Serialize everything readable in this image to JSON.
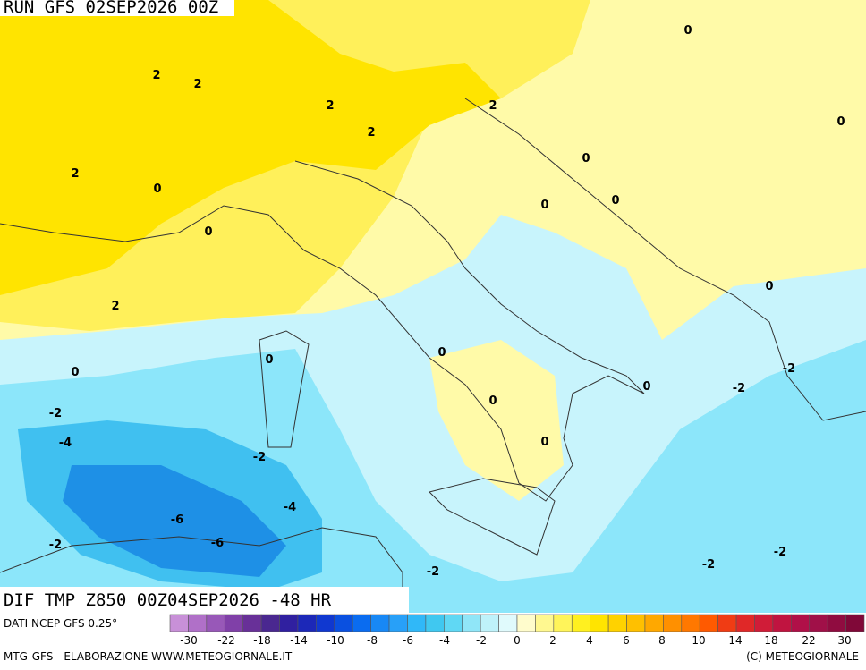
{
  "header": {
    "run": "RUN GFS 02SEP2026 00Z"
  },
  "map": {
    "title": "DIF TMP Z850 00Z04SEP2026 -48 HR",
    "contour_labels": [
      2,
      2,
      2,
      2,
      2,
      0,
      0,
      0,
      2,
      0,
      0,
      0,
      0,
      2,
      0,
      0,
      0,
      0,
      -2,
      -2,
      0,
      0,
      -2,
      -4,
      0,
      -2,
      -4,
      -6,
      -6,
      -2,
      -2,
      -2,
      -2
    ]
  },
  "colorbar": {
    "colors": [
      "#c890d8",
      "#b070c8",
      "#9858b8",
      "#8040a8",
      "#683098",
      "#4a2890",
      "#3020a0",
      "#1c28b8",
      "#1038d0",
      "#0a50e0",
      "#0a6cf0",
      "#1888f5",
      "#28a0f8",
      "#30b8f8",
      "#40c8f0",
      "#60d8f4",
      "#90e6f8",
      "#bff2fa",
      "#e0fafc",
      "#fffccc",
      "#fff890",
      "#fff45a",
      "#fff020",
      "#ffe400",
      "#ffd200",
      "#ffc000",
      "#ffa800",
      "#ff9000",
      "#ff7800",
      "#ff5a00",
      "#f03c14",
      "#e02828",
      "#d01c38",
      "#c01440",
      "#b01048",
      "#a01048",
      "#900c40",
      "#800838"
    ],
    "labels": [
      -30,
      -22,
      -18,
      -14,
      -10,
      -8,
      -6,
      -4,
      -2,
      0,
      2,
      4,
      6,
      8,
      10,
      14,
      18,
      22,
      30
    ]
  },
  "footer": {
    "source": "DATI NCEP GFS 0.25°",
    "credit": "MTG-GFS - ELABORAZIONE WWW.METEOGIORNALE.IT",
    "copyright": "(C) METEOGIORNALE"
  }
}
